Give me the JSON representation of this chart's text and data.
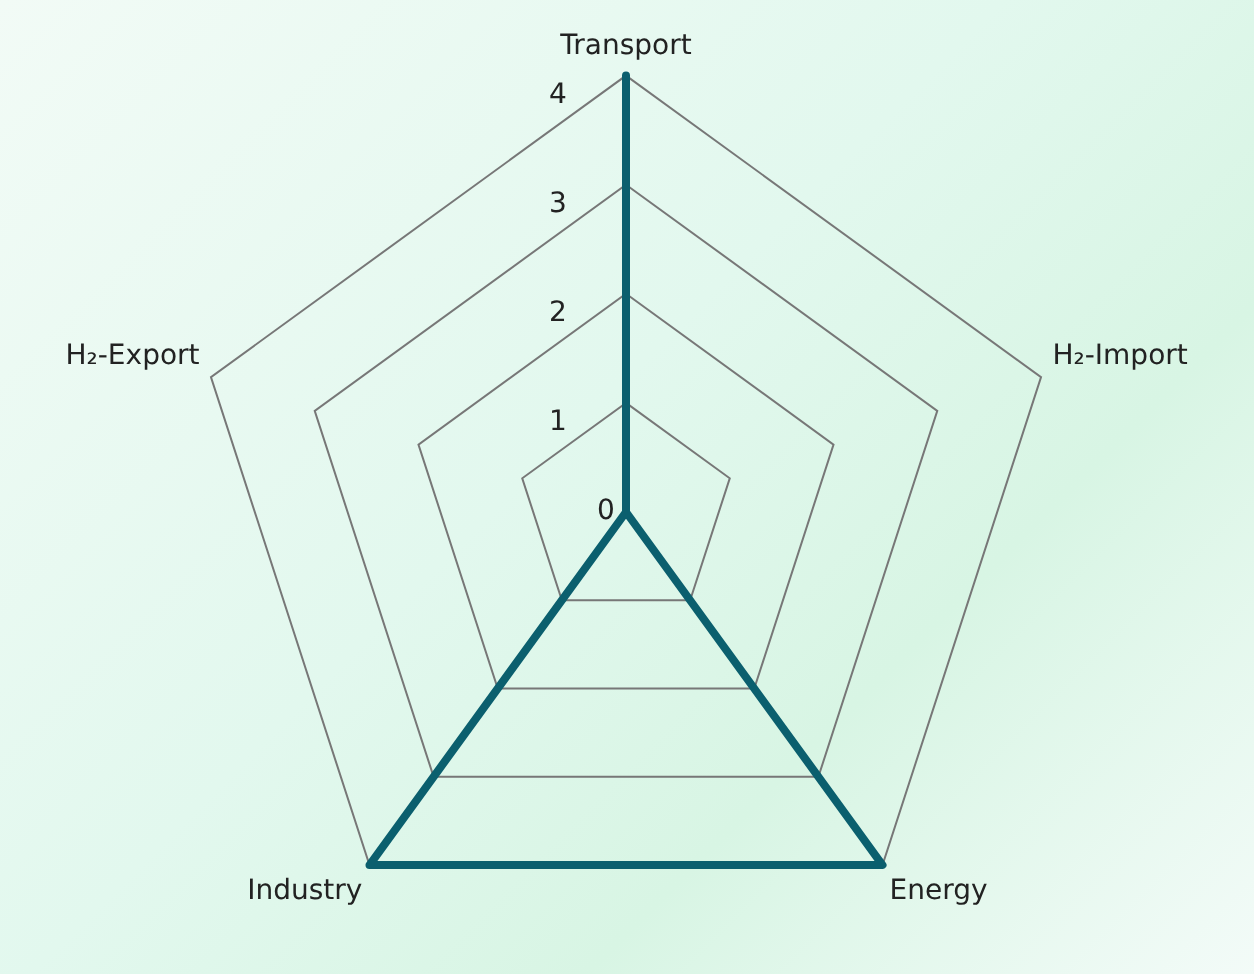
{
  "chart_data": {
    "type": "radar",
    "categories": [
      "Transport",
      "H₂-Import",
      "Energy",
      "Industry",
      "H₂-Export"
    ],
    "series": [
      {
        "color": "#0b5f6e",
        "values": [
          4,
          0,
          4,
          4,
          0
        ]
      }
    ],
    "ylim": [
      0,
      4
    ],
    "yticks": [
      0,
      1,
      2,
      3,
      4
    ],
    "grid": true,
    "legend": false,
    "marker": "none",
    "line_style": "solid"
  }
}
